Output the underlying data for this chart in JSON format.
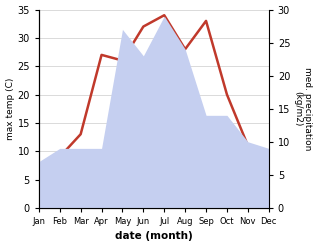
{
  "months": [
    "Jan",
    "Feb",
    "Mar",
    "Apr",
    "May",
    "Jun",
    "Jul",
    "Aug",
    "Sep",
    "Oct",
    "Nov",
    "Dec"
  ],
  "temperature": [
    4,
    9,
    13,
    27,
    26,
    32,
    34,
    28,
    33,
    20,
    11,
    10
  ],
  "precipitation": [
    7,
    9,
    9,
    9,
    27,
    23,
    29,
    24,
    14,
    14,
    10,
    9
  ],
  "temp_color": "#c0392b",
  "precip_color_fill": "#c5cff0",
  "ylabel_left": "max temp (C)",
  "ylabel_right": "med. precipitation\n(kg/m2)",
  "xlabel": "date (month)",
  "ylim_left": [
    0,
    35
  ],
  "ylim_right": [
    0,
    30
  ],
  "yticks_left": [
    0,
    5,
    10,
    15,
    20,
    25,
    30,
    35
  ],
  "yticks_right": [
    0,
    5,
    10,
    15,
    20,
    25,
    30
  ],
  "bg_color": "#ffffff",
  "line_width": 1.8
}
